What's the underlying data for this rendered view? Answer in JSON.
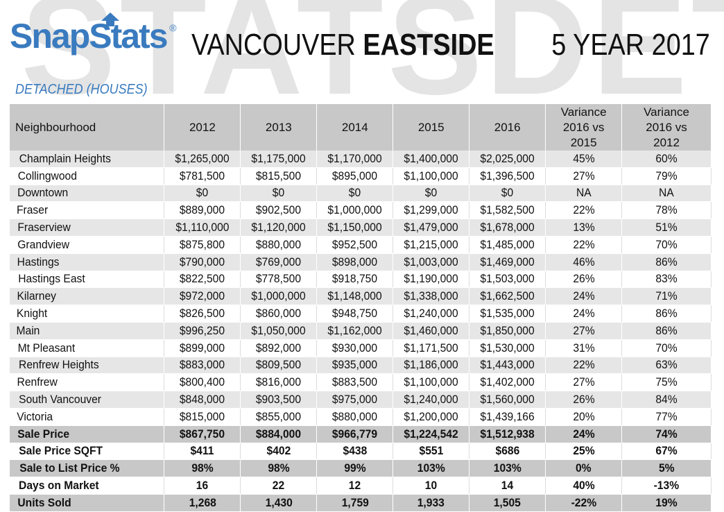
{
  "watermark": {
    "left": "STATS",
    "right": "DET"
  },
  "logo": {
    "text": "SnapStats",
    "registered": "®"
  },
  "title": {
    "prefix": "VANCOUVER ",
    "emphasis": "EASTSIDE",
    "year_label": "5 YEAR 2017"
  },
  "subtitle": "DETACHED (HOUSES)",
  "table": {
    "headers": [
      "Neighbourhood",
      "2012",
      "2013",
      "2014",
      "2015",
      "2016",
      "Variance\n2016 vs\n2015",
      "Variance\n2016 vs\n2012"
    ],
    "neighbourhoods": [
      [
        "Champlain Heights",
        "$1,265,000",
        "$1,175,000",
        "$1,170,000",
        "$1,400,000",
        "$2,025,000",
        "45%",
        "60%"
      ],
      [
        "Collingwood",
        "$781,500",
        "$815,500",
        "$895,000",
        "$1,100,000",
        "$1,396,500",
        "27%",
        "79%"
      ],
      [
        "Downtown",
        "$0",
        "$0",
        "$0",
        "$0",
        "$0",
        "NA",
        "NA"
      ],
      [
        "Fraser",
        "$889,000",
        "$902,500",
        "$1,000,000",
        "$1,299,000",
        "$1,582,500",
        "22%",
        "78%"
      ],
      [
        "Fraserview",
        "$1,110,000",
        "$1,120,000",
        "$1,150,000",
        "$1,479,000",
        "$1,678,000",
        "13%",
        "51%"
      ],
      [
        "Grandview",
        "$875,800",
        "$880,000",
        "$952,500",
        "$1,215,000",
        "$1,485,000",
        "22%",
        "70%"
      ],
      [
        "Hastings",
        "$790,000",
        "$769,000",
        "$898,000",
        "$1,003,000",
        "$1,469,000",
        "46%",
        "86%"
      ],
      [
        "Hastings East",
        "$822,500",
        "$778,500",
        "$918,750",
        "$1,190,000",
        "$1,503,000",
        "26%",
        "83%"
      ],
      [
        "Kilarney",
        "$972,000",
        "$1,000,000",
        "$1,148,000",
        "$1,338,000",
        "$1,662,500",
        "24%",
        "71%"
      ],
      [
        "Knight",
        "$826,500",
        "$860,000",
        "$948,750",
        "$1,240,000",
        "$1,535,000",
        "24%",
        "86%"
      ],
      [
        "Main",
        "$996,250",
        "$1,050,000",
        "$1,162,000",
        "$1,460,000",
        "$1,850,000",
        "27%",
        "86%"
      ],
      [
        "Mt Pleasant",
        "$899,000",
        "$892,000",
        "$930,000",
        "$1,171,500",
        "$1,530,000",
        "31%",
        "70%"
      ],
      [
        "Renfrew Heights",
        "$883,000",
        "$809,500",
        "$935,000",
        "$1,186,000",
        "$1,443,000",
        "22%",
        "63%"
      ],
      [
        "Renfrew",
        "$800,400",
        "$816,000",
        "$883,500",
        "$1,100,000",
        "$1,402,000",
        "27%",
        "75%"
      ],
      [
        "South Vancouver",
        "$848,000",
        "$903,500",
        "$975,000",
        "$1,240,000",
        "$1,560,000",
        "26%",
        "84%"
      ],
      [
        "Victoria",
        "$815,000",
        "$855,000",
        "$880,000",
        "$1,200,000",
        "$1,439,166",
        "20%",
        "77%"
      ]
    ],
    "summary": [
      [
        "Sale Price",
        "$867,750",
        "$884,000",
        "$966,779",
        "$1,224,542",
        "$1,512,938",
        "24%",
        "74%"
      ],
      [
        "Sale Price SQFT",
        "$411",
        "$402",
        "$438",
        "$551",
        "$686",
        "25%",
        "67%"
      ],
      [
        "Sale to List Price %",
        "98%",
        "98%",
        "99%",
        "103%",
        "103%",
        "0%",
        "5%"
      ],
      [
        "Days on Market",
        "16",
        "22",
        "12",
        "10",
        "14",
        "40%",
        "-13%"
      ],
      [
        "Units Sold",
        "1,268",
        "1,430",
        "1,759",
        "1,933",
        "1,505",
        "-22%",
        "19%"
      ]
    ]
  },
  "colors": {
    "brand_blue": "#3a7bbf",
    "header_gray": "#c8c8c8",
    "row_stripe": "#e6e6e6",
    "watermark": "#e4e4e4"
  }
}
